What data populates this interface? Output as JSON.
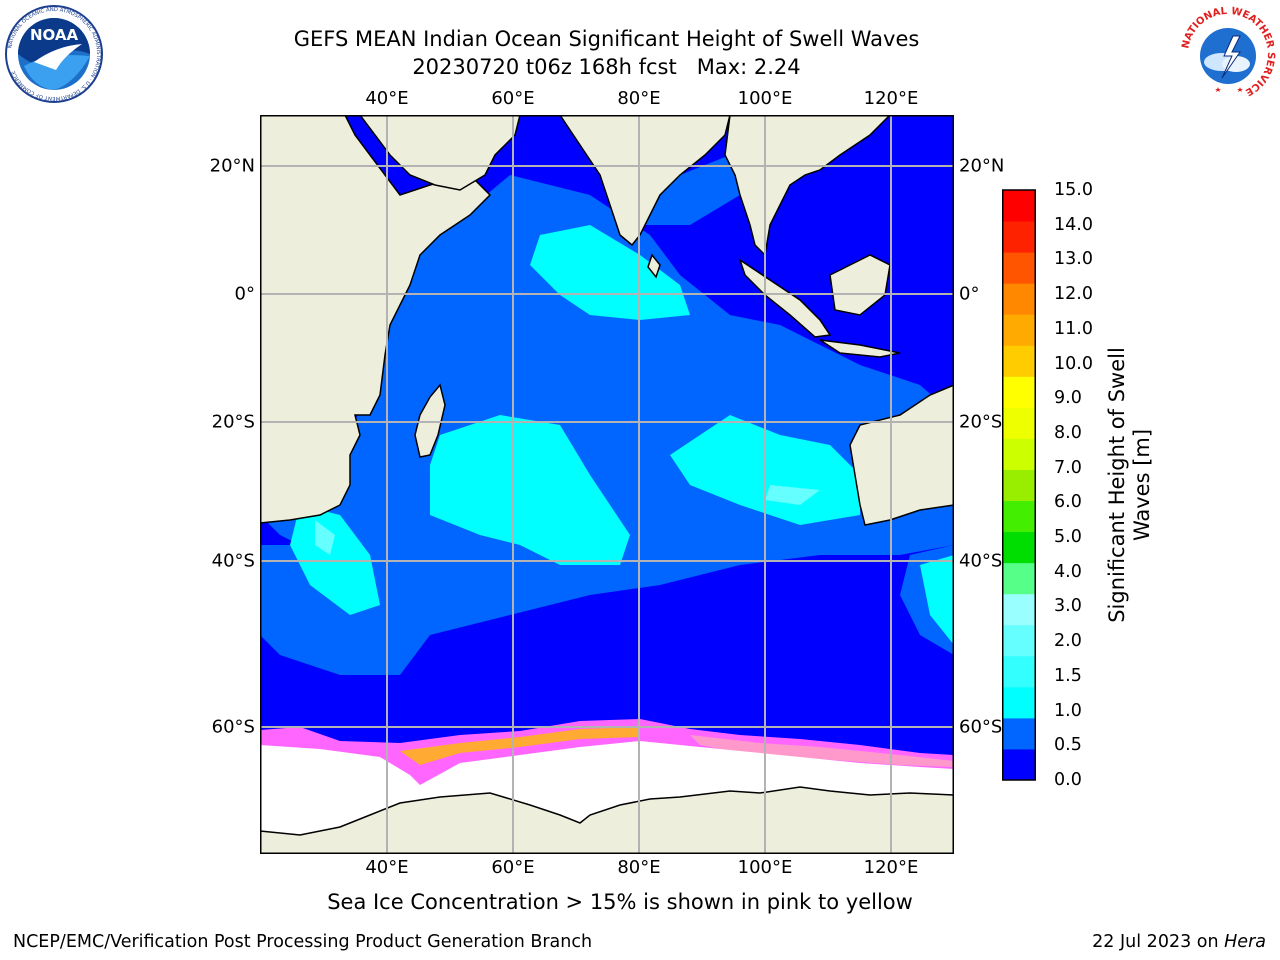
{
  "title": {
    "line1": "GEFS MEAN Indian Ocean Significant Height of Swell Waves",
    "line2": "20230720 t06z 168h fcst   Max: 2.24"
  },
  "map": {
    "lon_ticks": [
      "40°E",
      "60°E",
      "80°E",
      "100°E",
      "120°E"
    ],
    "lat_ticks": [
      "20°N",
      "0°",
      "20°S",
      "40°S",
      "60°S"
    ],
    "colors": {
      "land": "#eeeedc",
      "sea_ice": "#ffffff",
      "grid": "#b3b3b3",
      "ice_edge": [
        "#ff66ff",
        "#ff99cc",
        "#ffaa33",
        "#ffdd33"
      ]
    }
  },
  "colorbar": {
    "label_line1": "Significant Height of Swell",
    "label_line2": "Waves [m]",
    "ticks": [
      "0.0",
      "0.5",
      "1.0",
      "1.5",
      "2.0",
      "3.0",
      "4.0",
      "5.0",
      "6.0",
      "7.0",
      "8.0",
      "9.0",
      "10.0",
      "11.0",
      "12.0",
      "13.0",
      "14.0",
      "15.0"
    ],
    "colors": [
      "#0000ff",
      "#0066ff",
      "#00ffff",
      "#33ffff",
      "#66ffff",
      "#99ffff",
      "#55ff88",
      "#00dd00",
      "#44ee00",
      "#99ee00",
      "#ccff00",
      "#eeff00",
      "#ffff00",
      "#ffcc00",
      "#ffaa00",
      "#ff8800",
      "#ff5500",
      "#ff2200",
      "#ff0000"
    ]
  },
  "logos": {
    "noaa_text": "NOAA",
    "noaa_ring": "NATIONAL OCEANIC AND ATMOSPHERIC ADMINISTRATION · U.S. DEPARTMENT OF COMMERCE",
    "nws_ring": "NATIONAL WEATHER SERVICE"
  },
  "notes": {
    "ice": "Sea Ice Concentration > 15% is shown in pink to yellow",
    "footer_left": "NCEP/EMC/Verification Post Processing Product Generation Branch",
    "footer_date": "22 Jul 2023 on ",
    "footer_machine": "Hera"
  }
}
